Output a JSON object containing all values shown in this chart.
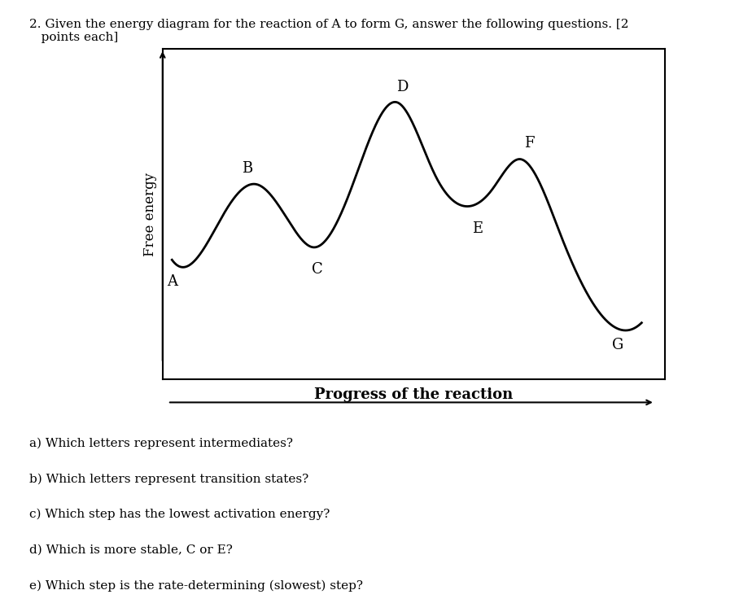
{
  "title_text": "2. Given the energy diagram for the reaction of A to form G, answer the following questions. [2\n   points each]",
  "xlabel": "Progress of the reaction",
  "ylabel": "Free energy",
  "background_color": "#ffffff",
  "plot_bg_color": "#ffffff",
  "line_color": "#000000",
  "line_width": 2.0,
  "points": {
    "A": [
      0.05,
      0.38
    ],
    "B": [
      0.18,
      0.62
    ],
    "C": [
      0.3,
      0.42
    ],
    "D": [
      0.48,
      0.88
    ],
    "E": [
      0.63,
      0.55
    ],
    "F": [
      0.74,
      0.7
    ],
    "G": [
      0.93,
      0.18
    ]
  },
  "questions": [
    "a) Which letters represent intermediates?",
    "b) Which letters represent transition states?",
    "c) Which step has the lowest activation energy?",
    "d) Which is more stable, C or E?",
    "e) Which step is the rate-determining (slowest) step?"
  ]
}
